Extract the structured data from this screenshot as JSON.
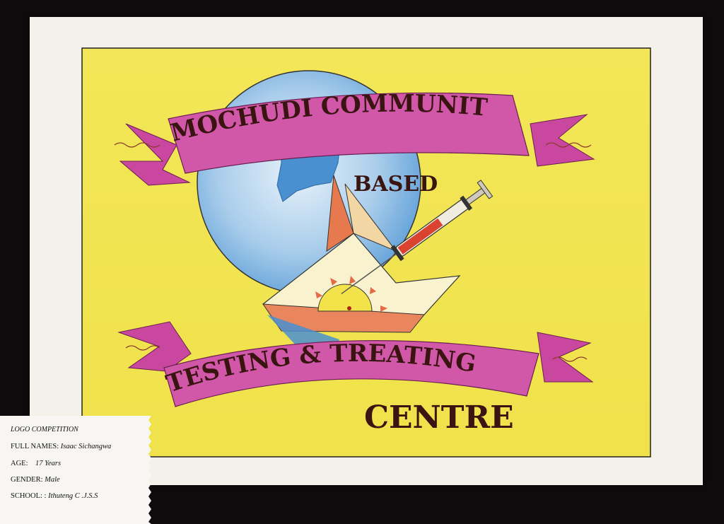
{
  "poster": {
    "banner_top": "MOCHUDI COMMUNITY",
    "banner_word_mochudi": "MOCHUDI",
    "banner_word_community": "COMMUNITY",
    "word_based": "BASED",
    "banner_bottom": "TESTING & TREATING",
    "word_centre": "CENTRE"
  },
  "label_card": {
    "title": "LOGO COMPETITION",
    "full_names_key": "FULL NAMES:",
    "full_names_value": "Isaac Sichangwa",
    "age_key": "AGE:",
    "age_value": "17 Years",
    "gender_key": "GENDER:",
    "gender_value": "Male",
    "school_key": "SCHOOL: :",
    "school_value": "Ithuteng C .J.S.S"
  },
  "colors": {
    "background": "#0d0b0c",
    "paper": "#f4f1ea",
    "yellow_field": "#f2e64a",
    "ribbon_pink": "#c9479f",
    "globe_blue": "#7fb4e0",
    "ink": "#3a1410"
  }
}
